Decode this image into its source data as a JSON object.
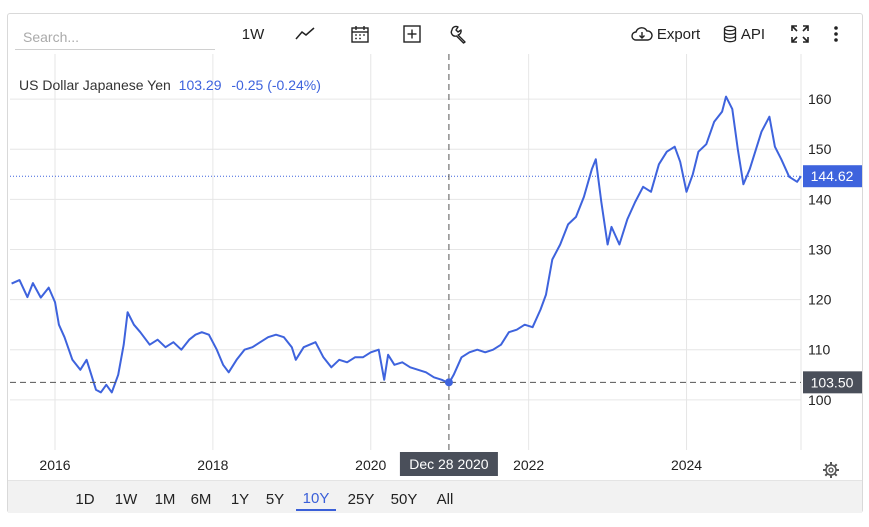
{
  "toolbar": {
    "search_placeholder": "Search...",
    "interval_label": "1W",
    "export_label": "Export",
    "api_label": "API"
  },
  "legend": {
    "name": "US Dollar Japanese Yen",
    "value": "103.29",
    "change": "-0.25 (-0.24%)"
  },
  "crosshair": {
    "date_label": "Dec 28 2020",
    "price_label": "103.50",
    "x_year": 2020.99,
    "y": 103.5
  },
  "last_price_label": "144.62",
  "range_buttons": [
    "1D",
    "1W",
    "1M",
    "6M",
    "1Y",
    "5Y",
    "10Y",
    "25Y",
    "50Y",
    "All"
  ],
  "active_range": "10Y",
  "colors": {
    "line": "#3e63dd",
    "accent": "#3a5fd8",
    "crosshair_label_bg": "#4a4f5a"
  },
  "chart_data": {
    "type": "line",
    "title": "",
    "xlabel": "",
    "ylabel": "",
    "xlim": [
      2015.43,
      2025.45
    ],
    "ylim": [
      90,
      169
    ],
    "x_ticks": [
      2016,
      2018,
      2020,
      2022,
      2024
    ],
    "x_tick_labels": [
      "2016",
      "2018",
      "2020",
      "2022",
      "2024"
    ],
    "y_ticks": [
      100,
      110,
      120,
      130,
      140,
      150,
      160
    ],
    "y_tick_labels": [
      "100",
      "110",
      "120",
      "130",
      "140",
      "150",
      "160"
    ],
    "grid": true,
    "series": [
      {
        "name": "",
        "x": [
          2015.45,
          2015.55,
          2015.65,
          2015.72,
          2015.82,
          2015.92,
          2016.0,
          2016.05,
          2016.12,
          2016.22,
          2016.32,
          2016.4,
          2016.47,
          2016.52,
          2016.58,
          2016.65,
          2016.72,
          2016.8,
          2016.87,
          2016.92,
          2017.0,
          2017.08,
          2017.2,
          2017.3,
          2017.4,
          2017.5,
          2017.6,
          2017.7,
          2017.78,
          2017.86,
          2017.95,
          2018.05,
          2018.13,
          2018.2,
          2018.3,
          2018.4,
          2018.5,
          2018.6,
          2018.7,
          2018.8,
          2018.9,
          2019.0,
          2019.05,
          2019.15,
          2019.3,
          2019.4,
          2019.5,
          2019.6,
          2019.7,
          2019.8,
          2019.9,
          2020.0,
          2020.1,
          2020.17,
          2020.22,
          2020.3,
          2020.4,
          2020.5,
          2020.6,
          2020.7,
          2020.8,
          2020.9,
          2020.99,
          2021.05,
          2021.15,
          2021.25,
          2021.35,
          2021.45,
          2021.55,
          2021.65,
          2021.75,
          2021.85,
          2021.95,
          2022.05,
          2022.15,
          2022.22,
          2022.3,
          2022.4,
          2022.5,
          2022.6,
          2022.7,
          2022.8,
          2022.85,
          2022.92,
          2023.0,
          2023.05,
          2023.15,
          2023.25,
          2023.35,
          2023.45,
          2023.55,
          2023.65,
          2023.75,
          2023.85,
          2023.92,
          2024.0,
          2024.08,
          2024.15,
          2024.25,
          2024.35,
          2024.45,
          2024.5,
          2024.58,
          2024.65,
          2024.72,
          2024.8,
          2024.88,
          2024.95,
          2025.05,
          2025.12,
          2025.2,
          2025.3,
          2025.4,
          2025.45
        ],
        "y": [
          123.2,
          123.9,
          120.5,
          123.3,
          120.4,
          122.4,
          119.5,
          115,
          112.5,
          108,
          106,
          108,
          104.5,
          102,
          101.5,
          103,
          101.5,
          105,
          111,
          117.5,
          115,
          113.5,
          111,
          112,
          110.5,
          111.5,
          110,
          112,
          113,
          113.5,
          113,
          110,
          107,
          105.5,
          108,
          110,
          110.5,
          111.5,
          112.5,
          113,
          112.5,
          110.5,
          108,
          110.5,
          111.5,
          108.5,
          106.5,
          108,
          107.5,
          108.5,
          108.5,
          109.5,
          110,
          104,
          109,
          107,
          107.5,
          106.5,
          106,
          105.5,
          104.5,
          104,
          103.3,
          105,
          108.5,
          109.5,
          110,
          109.5,
          110,
          111,
          113.5,
          114,
          115,
          114.5,
          118,
          121,
          128,
          131,
          135,
          136.5,
          140.5,
          146,
          148,
          139.5,
          131,
          134.5,
          131,
          136,
          139.5,
          142.5,
          141.5,
          147,
          149.5,
          150.5,
          147.5,
          141.5,
          145,
          149.5,
          151,
          155.5,
          157.5,
          160.5,
          158,
          150,
          143,
          146,
          150,
          153.5,
          156.5,
          150.5,
          148,
          144.5,
          143.5,
          144.62
        ]
      }
    ]
  }
}
